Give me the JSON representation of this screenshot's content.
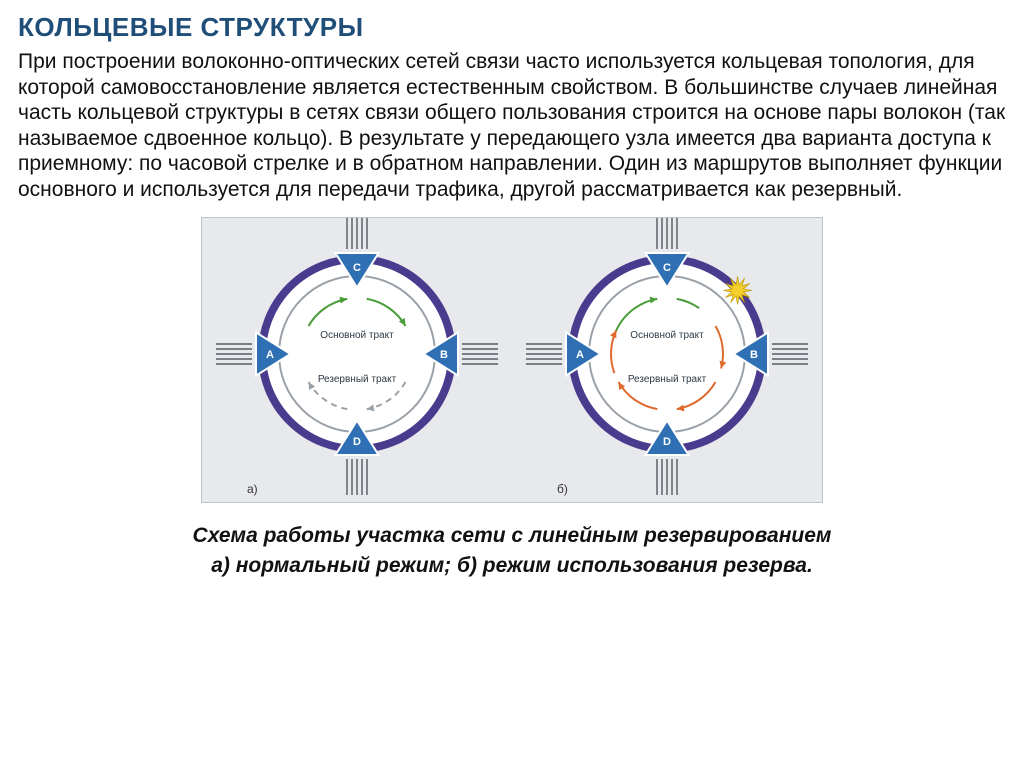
{
  "title": "КОЛЬЦЕВЫЕ СТРУКТУРЫ",
  "paragraph": " При построении волоконно-оптических сетей связи часто используется кольцевая топология, для которой самовосстановление является естественным свойством. В большинстве случаев линейная часть кольцевой структуры в сетях связи общего пользования строится на основе пары волокон (так называемое сдвоенное кольцо). В результате у передающего узла имеется два варианта доступа к приемному: по часовой стрелке и в обратном направлении. Один из маршрутов выполняет функции основного и используется для передачи трафика, другой рассматривается как резервный.",
  "caption_line1": "Схема работы участка сети с линейным резервированием",
  "caption_line2": "а) нормальный режим; б) режим использования резерва.",
  "diagram": {
    "outer_ring_color": "#4a3b8f",
    "inner_ring_color": "#9aa1a8",
    "ring_fill": "#ffffff",
    "node_fill": "#2f6fb3",
    "node_stroke": "#ffffff",
    "node_text_color": "#ffffff",
    "whisker_color": "#39414a",
    "arrow_main_color": "#4a9d3a",
    "arrow_reserve_normal_color": "#9aa1a8",
    "arrow_reserve_fail_color": "#e06a2e",
    "label_text_color": "#2d3a45",
    "bg_color": "#e7e9ec",
    "fault_color": "#f5cf2b",
    "ring_outer_radius": 95,
    "ring_inner_radius": 78,
    "ring_stroke_width": 8,
    "triangle_size": 30,
    "node_font_size": 11,
    "inner_label_font_size": 10,
    "sub_label_font_size": 12,
    "nodes": [
      {
        "id": "C",
        "angle_deg": -90
      },
      {
        "id": "B",
        "angle_deg": 0
      },
      {
        "id": "D",
        "angle_deg": 90
      },
      {
        "id": "A",
        "angle_deg": 180
      }
    ],
    "inner_labels": {
      "main": "Основной тракт",
      "reserve": "Резервный тракт"
    },
    "panels": [
      {
        "key": "a",
        "label": "а)",
        "reserve_color_key": "arrow_reserve_normal_color",
        "reserve_dashed": true,
        "has_fault": false
      },
      {
        "key": "b",
        "label": "б)",
        "reserve_color_key": "arrow_reserve_fail_color",
        "reserve_dashed": false,
        "has_fault": true
      }
    ]
  }
}
